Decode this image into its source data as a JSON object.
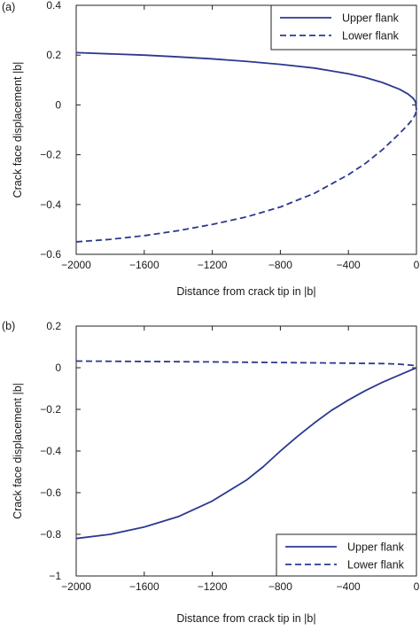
{
  "chart_data": [
    {
      "type": "line",
      "panel_label": "(a)",
      "xlabel": "Distance from crack tip in |b|",
      "ylabel": "Crack face displacement |b|",
      "xlim": [
        -2000,
        0
      ],
      "ylim": [
        -0.6,
        0.4
      ],
      "xticks": [
        -2000,
        -1600,
        -1200,
        -800,
        -400,
        0
      ],
      "xtick_labels": [
        "−2000",
        "−1600",
        "−1200",
        "−800",
        "−400",
        "0"
      ],
      "yticks": [
        -0.6,
        -0.4,
        -0.2,
        0,
        0.2,
        0.4
      ],
      "ytick_labels": [
        "−0.6",
        "−0.4",
        "−0.2",
        "0",
        "0.2",
        "0.4"
      ],
      "grid": false,
      "legend_position": "top-right",
      "color": "#2b3990",
      "series": [
        {
          "name": "Upper flank",
          "style": "solid",
          "x": [
            -2000,
            -1800,
            -1600,
            -1400,
            -1200,
            -1000,
            -800,
            -600,
            -400,
            -300,
            -200,
            -100,
            -50,
            -20,
            -5,
            0
          ],
          "y": [
            0.21,
            0.205,
            0.2,
            0.193,
            0.185,
            0.175,
            0.163,
            0.148,
            0.125,
            0.11,
            0.09,
            0.063,
            0.044,
            0.027,
            0.012,
            -0.02
          ]
        },
        {
          "name": "Lower flank",
          "style": "dashed",
          "x": [
            -2000,
            -1800,
            -1600,
            -1400,
            -1200,
            -1000,
            -800,
            -600,
            -400,
            -300,
            -200,
            -100,
            -50,
            -20,
            -5,
            0
          ],
          "y": [
            -0.55,
            -0.54,
            -0.525,
            -0.505,
            -0.48,
            -0.45,
            -0.41,
            -0.355,
            -0.28,
            -0.235,
            -0.18,
            -0.115,
            -0.08,
            -0.055,
            -0.035,
            -0.02
          ]
        }
      ]
    },
    {
      "type": "line",
      "panel_label": "(b)",
      "xlabel": "Distance from crack tip in |b|",
      "ylabel": "Crack face displacement |b|",
      "xlim": [
        -2000,
        0
      ],
      "ylim": [
        -1,
        0.2
      ],
      "xticks": [
        -2000,
        -1600,
        -1200,
        -800,
        -400,
        0
      ],
      "xtick_labels": [
        "−2000",
        "−1600",
        "−1200",
        "−800",
        "−400",
        "0"
      ],
      "yticks": [
        -1,
        -0.8,
        -0.6,
        -0.4,
        -0.2,
        0,
        0.2
      ],
      "ytick_labels": [
        "−1",
        "−0.8",
        "−0.6",
        "−0.4",
        "−0.2",
        "0",
        "0.2"
      ],
      "grid": false,
      "legend_position": "bottom-right",
      "color": "#2b3990",
      "series": [
        {
          "name": "Upper flank",
          "style": "solid",
          "x": [
            -2000,
            -1800,
            -1600,
            -1400,
            -1200,
            -1000,
            -900,
            -800,
            -700,
            -600,
            -500,
            -400,
            -300,
            -200,
            -100,
            0
          ],
          "y": [
            -0.82,
            -0.8,
            -0.765,
            -0.715,
            -0.64,
            -0.54,
            -0.475,
            -0.4,
            -0.33,
            -0.265,
            -0.205,
            -0.155,
            -0.11,
            -0.07,
            -0.035,
            0
          ]
        },
        {
          "name": "Lower flank",
          "style": "dashed",
          "x": [
            -2000,
            -1600,
            -1200,
            -800,
            -400,
            -200,
            -100,
            0
          ],
          "y": [
            0.032,
            0.03,
            0.028,
            0.025,
            0.022,
            0.02,
            0.017,
            0.01
          ]
        }
      ]
    }
  ]
}
